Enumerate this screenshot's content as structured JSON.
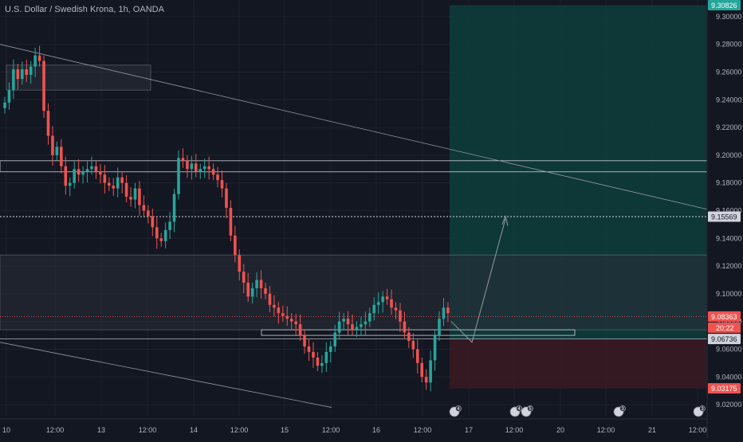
{
  "chart_title": "U.S. Dollar / Swedish Krona, 1h, OANDA",
  "colors": {
    "background": "#131722",
    "grid": "#1e222d",
    "text": "#b2b5be",
    "up": "#26a69a",
    "down": "#ef5350",
    "target_zone": "#0e3b3b",
    "stop_zone": "#3a1a22",
    "price_line": "#ef5350"
  },
  "chart_data": {
    "type": "candlestick",
    "title": "U.S. Dollar / Swedish Krona, 1h, OANDA",
    "y_range": [
      9.012,
      9.312
    ],
    "y_ticks": [
      "9.30000",
      "9.28000",
      "9.26000",
      "9.24000",
      "9.22000",
      "9.20000",
      "9.18000",
      "9.16000",
      "9.14000",
      "9.12000",
      "9.10000",
      "9.08000",
      "9.06000",
      "9.04000",
      "9.02000"
    ],
    "x_tick_labels": [
      "10",
      "12:00",
      "13",
      "12:00",
      "14",
      "12:00",
      "15",
      "12:00",
      "16",
      "12:00",
      "17",
      "12:00",
      "20",
      "12:00",
      "21",
      "12:00"
    ],
    "candles_close": [
      9.238,
      9.247,
      9.262,
      9.255,
      9.262,
      9.258,
      9.264,
      9.272,
      9.268,
      9.232,
      9.214,
      9.2,
      9.206,
      9.192,
      9.178,
      9.18,
      9.19,
      9.186,
      9.188,
      9.19,
      9.192,
      9.188,
      9.186,
      9.18,
      9.178,
      9.176,
      9.184,
      9.18,
      9.17,
      9.168,
      9.176,
      9.164,
      9.16,
      9.156,
      9.148,
      9.14,
      9.138,
      9.146,
      9.152,
      9.172,
      9.198,
      9.196,
      9.19,
      9.194,
      9.188,
      9.19,
      9.192,
      9.19,
      9.186,
      9.182,
      9.176,
      9.162,
      9.142,
      9.128,
      9.116,
      9.108,
      9.098,
      9.104,
      9.11,
      9.104,
      9.1,
      9.092,
      9.09,
      9.086,
      9.084,
      9.082,
      9.08,
      9.078,
      9.07,
      9.062,
      9.058,
      9.054,
      9.048,
      9.05,
      9.058,
      9.062,
      9.072,
      9.08,
      9.082,
      9.078,
      9.074,
      9.076,
      9.078,
      9.08,
      9.086,
      9.092,
      9.094,
      9.098,
      9.096,
      9.09,
      9.088,
      9.08,
      9.072,
      9.066,
      9.06,
      9.05,
      9.04,
      9.036,
      9.052,
      9.07,
      9.082,
      9.09,
      9.086
    ],
    "price_labels": {
      "top": "9.30826",
      "target": "9.15569",
      "current": "9.08363",
      "countdown": "20:22",
      "entry": "9.06736",
      "stop": "9.03175"
    },
    "levels": {
      "top": 9.30826,
      "target": 9.15569,
      "current": 9.08363,
      "entry": 9.06736,
      "stop": 9.03175
    },
    "event_badges": [
      "4",
      "4",
      "5",
      "3",
      "3"
    ]
  }
}
